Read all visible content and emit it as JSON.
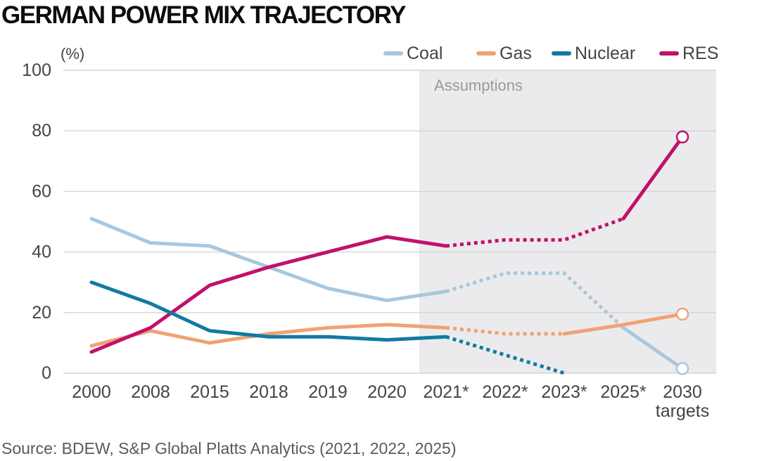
{
  "chart_data": {
    "type": "line",
    "title": "GERMAN POWER MIX TRAJECTORY",
    "ylabel": "(%)",
    "xlabel": "",
    "ylim": [
      0,
      100
    ],
    "yticks": [
      "0",
      "20",
      "40",
      "60",
      "80",
      "100"
    ],
    "categories": [
      "2000",
      "2008",
      "2015",
      "2018",
      "2019",
      "2020",
      "2021*",
      "2022*",
      "2023*",
      "2025*",
      "2030"
    ],
    "category_sublabels": {
      "2030": "targets"
    },
    "assumptions_label": "Assumptions",
    "assumptions_from_category": "2021*",
    "legend_position": "top-right",
    "series": [
      {
        "name": "Coal",
        "color": "#a9c7dd",
        "values": [
          51,
          43,
          42,
          35,
          28,
          24,
          27,
          33,
          33,
          15,
          1.5
        ],
        "dashed_from_index": 6,
        "dashed_until_index": 9,
        "end_marker": true
      },
      {
        "name": "Gas",
        "color": "#f0a275",
        "values": [
          9,
          14,
          10,
          13,
          15,
          16,
          15,
          13,
          13,
          16,
          19.5
        ],
        "dashed_from_index": 6,
        "dashed_until_index": 8,
        "end_marker": true
      },
      {
        "name": "Nuclear",
        "color": "#127aa3",
        "values": [
          30,
          23,
          14,
          12,
          12,
          11,
          12,
          null,
          0,
          null,
          null
        ],
        "dashed_from_index": 6,
        "dashed_until_index": 8,
        "end_marker": false
      },
      {
        "name": "RES",
        "color": "#c1116a",
        "values": [
          7,
          15,
          29,
          35,
          40,
          45,
          42,
          44,
          44,
          51,
          78
        ],
        "dashed_from_index": 6,
        "dashed_until_index": 9,
        "end_marker": true
      }
    ],
    "source": "Source: BDEW, S&P Global Platts Analytics (2021, 2022, 2025)"
  }
}
